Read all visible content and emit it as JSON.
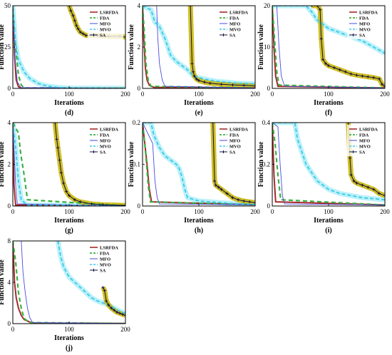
{
  "colors": {
    "LSRFDA": "#a52a2a",
    "FDA": "#3cb043",
    "MFO": "#4a4adf",
    "MVO": "#3bc8e8",
    "SA": "#101040",
    "SA_band": "#c8b400",
    "MVO_band": "#aeeef8"
  },
  "chart_data": [
    {
      "id": "d",
      "type": "line",
      "caption": "(d)",
      "xlabel": "Iterations",
      "ylabel": "Function value",
      "xlim": [
        0,
        200
      ],
      "ylim": [
        0,
        50
      ],
      "xticks": [
        0,
        100,
        200
      ],
      "yticks": [
        0,
        25,
        50
      ],
      "legend_position": "top-right",
      "series": [
        {
          "name": "LSRFDA",
          "x": [
            0,
            3,
            6,
            10,
            15,
            200
          ],
          "y": [
            50,
            20,
            5,
            1,
            0.2,
            0.1
          ]
        },
        {
          "name": "FDA",
          "x": [
            0,
            5,
            10,
            15,
            20,
            200
          ],
          "y": [
            50,
            25,
            8,
            2,
            0.3,
            0.1
          ]
        },
        {
          "name": "MFO",
          "x": [
            0,
            4,
            8,
            14,
            200
          ],
          "y": [
            50,
            18,
            4,
            0.5,
            0.1
          ]
        },
        {
          "name": "MVO",
          "x": [
            0,
            5,
            10,
            20,
            30,
            45,
            60,
            80,
            100,
            200
          ],
          "y": [
            50,
            27,
            17,
            10,
            6,
            3,
            1.5,
            0.6,
            0.2,
            0.1
          ]
        },
        {
          "name": "SA",
          "x": [
            100,
            103,
            107,
            110,
            113,
            116,
            120,
            125,
            130,
            150,
            170,
            190,
            200
          ],
          "y": [
            50,
            47,
            44,
            41,
            38,
            36,
            34,
            33,
            32,
            32,
            31.5,
            31.5,
            31
          ]
        }
      ]
    },
    {
      "id": "e",
      "type": "line",
      "caption": "(e)",
      "xlabel": "Iterations",
      "ylabel": "Function value",
      "xlim": [
        0,
        200
      ],
      "ylim": [
        0,
        4
      ],
      "xticks": [
        0,
        100,
        200
      ],
      "yticks": [
        0,
        2,
        4
      ],
      "legend_position": "top-right",
      "series": [
        {
          "name": "LSRFDA",
          "x": [
            0,
            2,
            5,
            8,
            12,
            20,
            200
          ],
          "y": [
            4,
            2.5,
            1,
            0.4,
            0.15,
            0.05,
            0.02
          ]
        },
        {
          "name": "FDA",
          "x": [
            0,
            3,
            6,
            10,
            15,
            200
          ],
          "y": [
            4,
            2.8,
            1.2,
            0.4,
            0.1,
            0.02
          ]
        },
        {
          "name": "MFO",
          "x": [
            0,
            25,
            27,
            30,
            35,
            40,
            200
          ],
          "y": [
            4,
            4,
            2.5,
            1.2,
            0.4,
            0.1,
            0.02
          ]
        },
        {
          "name": "MVO",
          "x": [
            0,
            15,
            22,
            30,
            40,
            50,
            60,
            70,
            80,
            90,
            110,
            130,
            150,
            170,
            200
          ],
          "y": [
            4,
            3.8,
            3.2,
            3.0,
            2.4,
            1.6,
            1.3,
            1.1,
            0.9,
            0.6,
            0.45,
            0.35,
            0.3,
            0.25,
            0.22
          ]
        },
        {
          "name": "SA",
          "x": [
            85,
            88,
            90,
            92,
            96,
            100,
            110,
            120,
            140,
            160,
            180,
            200
          ],
          "y": [
            4,
            1.2,
            0.8,
            0.6,
            0.45,
            0.38,
            0.3,
            0.25,
            0.2,
            0.17,
            0.15,
            0.12
          ]
        }
      ]
    },
    {
      "id": "f",
      "type": "line",
      "caption": "(f)",
      "xlabel": "Iterations",
      "ylabel": "Function value",
      "xlim": [
        0,
        200
      ],
      "ylim": [
        0,
        20
      ],
      "xticks": [
        0,
        100,
        200
      ],
      "yticks": [
        0,
        10,
        20
      ],
      "legend_position": "top-right",
      "series": [
        {
          "name": "LSRFDA",
          "x": [
            0,
            3,
            6,
            10,
            200
          ],
          "y": [
            20,
            10,
            3,
            0.5,
            0.1
          ]
        },
        {
          "name": "FDA",
          "x": [
            0,
            4,
            8,
            12,
            200
          ],
          "y": [
            20,
            12,
            4,
            0.8,
            0.1
          ]
        },
        {
          "name": "MFO",
          "x": [
            0,
            8,
            12,
            16,
            22,
            200
          ],
          "y": [
            20,
            20,
            10,
            3,
            0.5,
            0.1
          ]
        },
        {
          "name": "MVO",
          "x": [
            0,
            60,
            70,
            80,
            90,
            100,
            120,
            140,
            160,
            180,
            200
          ],
          "y": [
            20,
            20,
            18.5,
            16.5,
            15.5,
            14.5,
            13.5,
            12.5,
            11.5,
            10,
            8.5
          ]
        },
        {
          "name": "SA",
          "x": [
            70,
            80,
            85,
            87,
            90,
            95,
            100,
            110,
            120,
            130,
            140,
            150,
            160,
            170,
            180,
            190,
            195,
            200
          ],
          "y": [
            20,
            20,
            19,
            12,
            7,
            6,
            5.5,
            5,
            4.5,
            4,
            3.5,
            3.2,
            3,
            2.8,
            2.6,
            2.3,
            1.0,
            0.5
          ]
        }
      ]
    },
    {
      "id": "g",
      "type": "line",
      "caption": "(g)",
      "xlabel": "Iterations",
      "ylabel": "Function value",
      "xlim": [
        0,
        200
      ],
      "ylim": [
        0,
        4
      ],
      "xticks": [
        0,
        100,
        200
      ],
      "yticks": [
        0,
        2,
        4
      ],
      "legend_position": "top-right",
      "series": [
        {
          "name": "LSRFDA",
          "x": [
            0,
            2,
            5,
            200
          ],
          "y": [
            4,
            1,
            0.05,
            0.01
          ]
        },
        {
          "name": "FDA",
          "x": [
            0,
            10,
            14,
            20,
            26,
            200
          ],
          "y": [
            4,
            3.5,
            2.5,
            1.5,
            0.3,
            0.01
          ]
        },
        {
          "name": "MFO",
          "x": [
            0,
            5,
            8,
            200
          ],
          "y": [
            4,
            1,
            0.1,
            0.01
          ]
        },
        {
          "name": "MVO",
          "x": [
            0,
            5,
            10,
            15,
            25,
            200
          ],
          "y": [
            4,
            2.8,
            1.2,
            0.3,
            0.05,
            0.01
          ]
        },
        {
          "name": "SA",
          "x": [
            75,
            78,
            80,
            83,
            86,
            90,
            95,
            100,
            110,
            120,
            140,
            160,
            200
          ],
          "y": [
            4,
            3.2,
            2.8,
            2.2,
            1.6,
            1.1,
            0.7,
            0.5,
            0.3,
            0.2,
            0.1,
            0.06,
            0.03
          ]
        }
      ]
    },
    {
      "id": "h",
      "type": "line",
      "caption": "(h)",
      "xlabel": "Iterations",
      "ylabel": "Function value",
      "xlim": [
        0,
        200
      ],
      "ylim": [
        0,
        0.2
      ],
      "xticks": [
        0,
        100,
        200
      ],
      "yticks": [
        0,
        0.1,
        0.2
      ],
      "legend_position": "top-right",
      "series": [
        {
          "name": "LSRFDA",
          "x": [
            0,
            8,
            12,
            16,
            200
          ],
          "y": [
            0.2,
            0.1,
            0.04,
            0.01,
            0.003
          ]
        },
        {
          "name": "FDA",
          "x": [
            0,
            6,
            10,
            14,
            200
          ],
          "y": [
            0.2,
            0.12,
            0.05,
            0.01,
            0.003
          ]
        },
        {
          "name": "MFO",
          "x": [
            0,
            18,
            22,
            26,
            30,
            200
          ],
          "y": [
            0.2,
            0.15,
            0.06,
            0.02,
            0.005,
            0.003
          ]
        },
        {
          "name": "MVO",
          "x": [
            0,
            15,
            20,
            30,
            40,
            50,
            60,
            65,
            70,
            75,
            80,
            100,
            120,
            140,
            160,
            180,
            200
          ],
          "y": [
            0.2,
            0.2,
            0.17,
            0.14,
            0.12,
            0.11,
            0.1,
            0.09,
            0.07,
            0.04,
            0.02,
            0.012,
            0.01,
            0.008,
            0.006,
            0.005,
            0.004
          ]
        },
        {
          "name": "SA",
          "x": [
            125,
            128,
            130,
            135,
            140,
            150,
            160,
            170,
            180,
            190,
            200
          ],
          "y": [
            0.2,
            0.06,
            0.05,
            0.045,
            0.04,
            0.03,
            0.02,
            0.015,
            0.012,
            0.01,
            0.008
          ]
        }
      ]
    },
    {
      "id": "i",
      "type": "line",
      "caption": "(i)",
      "xlabel": "Iterations",
      "ylabel": "Function value",
      "xlim": [
        0,
        200
      ],
      "ylim": [
        0,
        0.4
      ],
      "xticks": [
        0,
        100,
        200
      ],
      "yticks": [
        0,
        0.2,
        0.4
      ],
      "legend_position": "top-right",
      "series": [
        {
          "name": "LSRFDA",
          "x": [
            0,
            3,
            6,
            200
          ],
          "y": [
            0.4,
            0.15,
            0.02,
            0.005
          ]
        },
        {
          "name": "FDA",
          "x": [
            0,
            5,
            10,
            15,
            200
          ],
          "y": [
            0.4,
            0.3,
            0.15,
            0.03,
            0.005
          ]
        },
        {
          "name": "MFO",
          "x": [
            0,
            10,
            14,
            18,
            22,
            200
          ],
          "y": [
            0.4,
            0.38,
            0.2,
            0.05,
            0.01,
            0.005
          ]
        },
        {
          "name": "MVO",
          "x": [
            0,
            40,
            45,
            50,
            55,
            60,
            70,
            80,
            90,
            100,
            110,
            120,
            140,
            160,
            180,
            200
          ],
          "y": [
            0.4,
            0.4,
            0.32,
            0.28,
            0.24,
            0.2,
            0.16,
            0.12,
            0.1,
            0.08,
            0.07,
            0.06,
            0.05,
            0.04,
            0.035,
            0.03
          ]
        },
        {
          "name": "SA",
          "x": [
            135,
            138,
            140,
            145,
            150,
            160,
            170,
            180,
            190,
            200
          ],
          "y": [
            0.4,
            0.23,
            0.15,
            0.12,
            0.11,
            0.1,
            0.09,
            0.08,
            0.06,
            0.05
          ]
        }
      ]
    },
    {
      "id": "j",
      "type": "line",
      "caption": "(j)",
      "xlabel": "Iterations",
      "ylabel": "Function value",
      "xlim": [
        0,
        200
      ],
      "ylim": [
        0,
        8
      ],
      "xticks": [
        0,
        100,
        200
      ],
      "yticks": [
        0,
        4,
        8
      ],
      "legend_position": "top-right",
      "series": [
        {
          "name": "LSRFDA",
          "x": [
            0,
            3,
            6,
            10,
            15,
            20,
            30,
            40,
            200
          ],
          "y": [
            8,
            4,
            2.5,
            1.5,
            0.8,
            0.4,
            0.15,
            0.05,
            0.02
          ]
        },
        {
          "name": "FDA",
          "x": [
            0,
            5,
            10,
            15,
            20,
            30,
            200
          ],
          "y": [
            8,
            6,
            3,
            1.5,
            0.5,
            0.1,
            0.02
          ]
        },
        {
          "name": "MFO",
          "x": [
            0,
            15,
            18,
            22,
            26,
            30,
            35,
            200
          ],
          "y": [
            8,
            8,
            5,
            3,
            1.5,
            0.6,
            0.1,
            0.02
          ]
        },
        {
          "name": "MVO",
          "x": [
            80,
            85,
            90,
            95,
            100,
            110,
            120,
            130,
            140,
            150,
            160,
            170,
            180,
            190,
            200
          ],
          "y": [
            8,
            6.5,
            5.5,
            5,
            4.5,
            4,
            3.5,
            3,
            2.5,
            2.2,
            2,
            1.8,
            1.5,
            1.2,
            1.0
          ]
        },
        {
          "name": "SA",
          "x": [
            160,
            163,
            166,
            170,
            175,
            180,
            185,
            190,
            195,
            200
          ],
          "y": [
            3.5,
            3.2,
            2.2,
            1.8,
            1.5,
            1.3,
            1.1,
            1.0,
            0.9,
            0.8
          ]
        }
      ]
    }
  ]
}
